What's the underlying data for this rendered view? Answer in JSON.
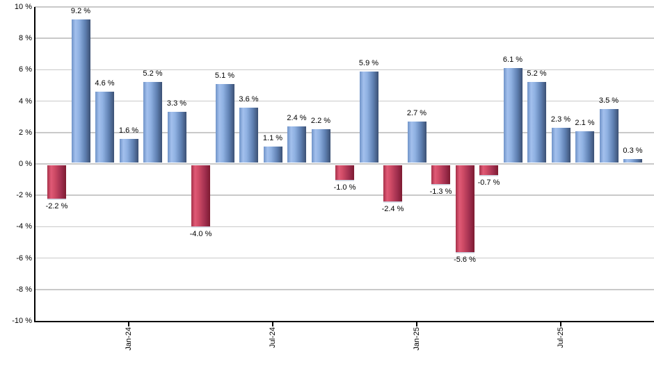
{
  "chart_data": {
    "type": "bar",
    "title": "",
    "description": "Monthly percent-change bar chart; blue bars are positive months, red bars are negative months",
    "values": [
      -2.2,
      9.2,
      4.6,
      1.6,
      5.2,
      3.3,
      -4.0,
      5.1,
      3.6,
      1.1,
      2.4,
      2.2,
      -1.0,
      5.9,
      -2.4,
      2.7,
      -1.3,
      -5.6,
      -0.7,
      6.1,
      5.2,
      2.3,
      2.1,
      3.5,
      0.3
    ],
    "bar_labels": [
      "-2.2 %",
      "9.2 %",
      "4.6 %",
      "1.6 %",
      "5.2 %",
      "3.3 %",
      "-4.0 %",
      "5.1 %",
      "3.6 %",
      "1.1 %",
      "2.4 %",
      "2.2 %",
      "-1.0 %",
      "5.9 %",
      "-2.4 %",
      "2.7 %",
      "-1.3 %",
      "-5.6 %",
      "-0.7 %",
      "6.1 %",
      "5.2 %",
      "2.3 %",
      "2.1 %",
      "3.5 %",
      "0.3 %"
    ],
    "x_ticks": [
      {
        "bar_index": 3,
        "label": "Jan-24"
      },
      {
        "bar_index": 9,
        "label": "Jul-24"
      },
      {
        "bar_index": 15,
        "label": "Jan-25"
      },
      {
        "bar_index": 21,
        "label": "Jul-25"
      }
    ],
    "y_axis": {
      "min": -10,
      "max": 10,
      "step": 2,
      "unit_suffix": " %",
      "tick_labels": [
        "10 %",
        "8 %",
        "6 %",
        "4 %",
        "2 %",
        "0 %",
        "-2 %",
        "-4 %",
        "-6 %",
        "-8 %",
        "-10 %"
      ]
    },
    "grid": true,
    "legend": false,
    "colors": {
      "positive_bar_gradient": [
        "#6f93c8",
        "#a3c0ed",
        "#8fb1e2",
        "#5f80b2",
        "#3c5174"
      ],
      "negative_bar_gradient": [
        "#a63049",
        "#e05a76",
        "#ce4a65",
        "#a23050",
        "#7d1b31"
      ],
      "gradient_stops_pct": [
        0,
        20,
        40,
        72,
        100
      ],
      "gridline": "#c9c9c9",
      "axis": "#000000",
      "text": "#000000"
    }
  }
}
